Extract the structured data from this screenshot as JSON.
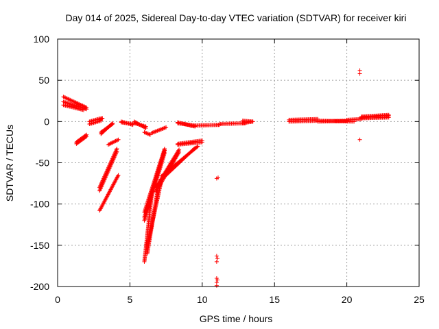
{
  "chart_data": {
    "type": "scatter",
    "title": "Day 014 of 2025, Sidereal Day-to-day VTEC variation (SDTVAR) for receiver kiri",
    "xlabel": "GPS time / hours",
    "ylabel": "SDTVAR / TECUs",
    "xlim": [
      0,
      25
    ],
    "ylim": [
      -200,
      100
    ],
    "xticks": [
      "0",
      "5",
      "10",
      "15",
      "20",
      "25"
    ],
    "yticks": [
      "100",
      "50",
      "0",
      "-50",
      "-100",
      "-150",
      "-200"
    ],
    "xtick_values": [
      0,
      5,
      10,
      15,
      20,
      25
    ],
    "ytick_values": [
      100,
      50,
      0,
      -50,
      -100,
      -150,
      -200
    ],
    "grid": true,
    "marker": "+",
    "color": "#ff0000",
    "segments": [
      {
        "x0": 0.4,
        "y0": 30,
        "x1": 2.0,
        "y1": 17
      },
      {
        "x0": 0.4,
        "y0": 24,
        "x1": 2.0,
        "y1": 15
      },
      {
        "x0": 0.4,
        "y0": 20,
        "x1": 1.8,
        "y1": 14
      },
      {
        "x0": 1.3,
        "y0": -27,
        "x1": 2.0,
        "y1": -18
      },
      {
        "x0": 1.3,
        "y0": -25,
        "x1": 2.0,
        "y1": -16
      },
      {
        "x0": 2.2,
        "y0": 0,
        "x1": 3.0,
        "y1": 4
      },
      {
        "x0": 2.2,
        "y0": -3,
        "x1": 3.0,
        "y1": 1
      },
      {
        "x0": 2.9,
        "y0": 2,
        "x1": 3.1,
        "y1": 4
      },
      {
        "x0": 3.0,
        "y0": -15,
        "x1": 3.8,
        "y1": -2
      },
      {
        "x0": 3.0,
        "y0": -13,
        "x1": 3.8,
        "y1": -3
      },
      {
        "x0": 3.5,
        "y0": -28,
        "x1": 4.2,
        "y1": -22
      },
      {
        "x0": 2.9,
        "y0": -84,
        "x1": 4.1,
        "y1": -36
      },
      {
        "x0": 2.9,
        "y0": -80,
        "x1": 4.1,
        "y1": -33
      },
      {
        "x0": 2.9,
        "y0": -108,
        "x1": 4.2,
        "y1": -65
      },
      {
        "x0": 4.4,
        "y0": 0,
        "x1": 5.2,
        "y1": -4
      },
      {
        "x0": 4.4,
        "y0": -1,
        "x1": 5.2,
        "y1": -3
      },
      {
        "x0": 5.3,
        "y0": 0,
        "x1": 6.1,
        "y1": -8
      },
      {
        "x0": 5.3,
        "y0": -2,
        "x1": 6.1,
        "y1": -6
      },
      {
        "x0": 6.0,
        "y0": -13,
        "x1": 6.4,
        "y1": -16
      },
      {
        "x0": 6.5,
        "y0": -14,
        "x1": 7.5,
        "y1": -7
      },
      {
        "x0": 6.0,
        "y0": -120,
        "x1": 7.4,
        "y1": -38
      },
      {
        "x0": 6.0,
        "y0": -116,
        "x1": 7.4,
        "y1": -35
      },
      {
        "x0": 6.0,
        "y0": -110,
        "x1": 7.4,
        "y1": -33
      },
      {
        "x0": 6.0,
        "y0": -170,
        "x1": 6.5,
        "y1": -90
      },
      {
        "x0": 6.2,
        "y0": -160,
        "x1": 7.0,
        "y1": -75
      },
      {
        "x0": 6.2,
        "y0": -150,
        "x1": 7.2,
        "y1": -70
      },
      {
        "x0": 6.8,
        "y0": -85,
        "x1": 8.4,
        "y1": -37
      },
      {
        "x0": 6.8,
        "y0": -80,
        "x1": 8.4,
        "y1": -34
      },
      {
        "x0": 7.2,
        "y0": -70,
        "x1": 9.5,
        "y1": -32
      },
      {
        "x0": 7.2,
        "y0": -66,
        "x1": 9.7,
        "y1": -30
      },
      {
        "x0": 8.3,
        "y0": -27,
        "x1": 10.0,
        "y1": -23
      },
      {
        "x0": 8.3,
        "y0": -28,
        "x1": 10.0,
        "y1": -25
      },
      {
        "x0": 8.3,
        "y0": -1,
        "x1": 9.5,
        "y1": -6
      },
      {
        "x0": 8.3,
        "y0": -2,
        "x1": 9.5,
        "y1": -5
      },
      {
        "x0": 9.2,
        "y0": -5,
        "x1": 11.2,
        "y1": -4
      },
      {
        "x0": 11.2,
        "y0": -3,
        "x1": 13.0,
        "y1": -2
      },
      {
        "x0": 12.8,
        "y0": -2,
        "x1": 13.5,
        "y1": 0
      },
      {
        "x0": 12.8,
        "y0": 1,
        "x1": 13.5,
        "y1": 0
      },
      {
        "x0": 16.0,
        "y0": 2,
        "x1": 18.0,
        "y1": 3
      },
      {
        "x0": 16.0,
        "y0": 0,
        "x1": 18.0,
        "y1": 1
      },
      {
        "x0": 18.0,
        "y0": 0,
        "x1": 20.0,
        "y1": 1
      },
      {
        "x0": 18.0,
        "y0": 1,
        "x1": 20.5,
        "y1": 0
      },
      {
        "x0": 20.0,
        "y0": 2,
        "x1": 21.0,
        "y1": 3
      },
      {
        "x0": 21.0,
        "y0": 5,
        "x1": 22.9,
        "y1": 7
      },
      {
        "x0": 21.0,
        "y0": 6,
        "x1": 22.9,
        "y1": 8
      },
      {
        "x0": 21.0,
        "y0": 4,
        "x1": 22.9,
        "y1": 5
      }
    ],
    "points": [
      {
        "x": 11.0,
        "y": -69
      },
      {
        "x": 11.1,
        "y": -68
      },
      {
        "x": 11.0,
        "y": -163
      },
      {
        "x": 11.0,
        "y": -170
      },
      {
        "x": 11.05,
        "y": -166
      },
      {
        "x": 11.0,
        "y": -190
      },
      {
        "x": 11.0,
        "y": -195
      },
      {
        "x": 11.0,
        "y": -199
      },
      {
        "x": 11.05,
        "y": -192
      },
      {
        "x": 20.9,
        "y": 62
      },
      {
        "x": 20.9,
        "y": 58
      },
      {
        "x": 20.9,
        "y": -22
      }
    ]
  }
}
